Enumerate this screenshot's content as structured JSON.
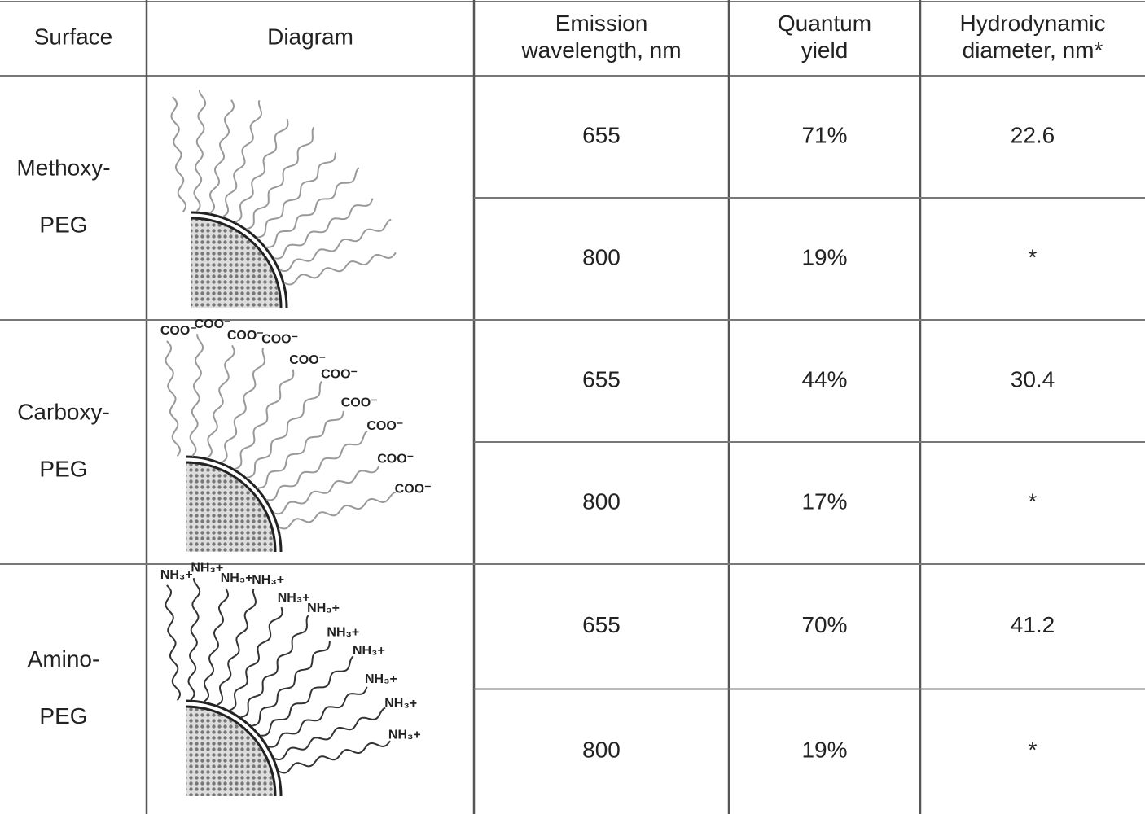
{
  "table": {
    "header": [
      [
        "Surface"
      ],
      [
        "Diagram"
      ],
      [
        "Emission",
        "wavelength, nm"
      ],
      [
        "Quantum",
        "yield"
      ],
      [
        "Hydrodynamic",
        "diameter, nm*"
      ]
    ],
    "groups": [
      {
        "surface": [
          "Methoxy-",
          "PEG"
        ],
        "rows": [
          [
            "655",
            "71%",
            "22.6"
          ],
          [
            "800",
            "19%",
            "*"
          ]
        ]
      },
      {
        "surface": [
          "Carboxy-",
          "PEG"
        ],
        "rows": [
          [
            "655",
            "44%",
            "30.4"
          ],
          [
            "800",
            "17%",
            "*"
          ]
        ],
        "labels": [
          "COO⁻",
          "COO⁻",
          "COO⁻",
          "COO⁻",
          "COO⁻",
          "COO⁻",
          "COO⁻",
          "COO⁻",
          "COO⁻",
          "COO⁻"
        ]
      },
      {
        "surface": [
          "Amino-",
          "PEG"
        ],
        "rows": [
          [
            "655",
            "70%",
            "41.2"
          ],
          [
            "800",
            "19%",
            "*"
          ]
        ],
        "labels": [
          "NH₃+",
          "NH₃+",
          "NH₃+",
          "NH₃+",
          "NH₃+",
          "NH₃+",
          "NH₃+",
          "NH₃+",
          "NH₃+",
          "NH₃+",
          "NH₃+"
        ]
      }
    ]
  }
}
